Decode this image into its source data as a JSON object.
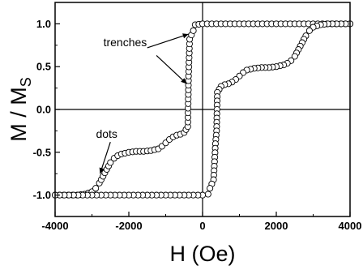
{
  "chart_data": {
    "type": "scatter",
    "title": "",
    "xlabel": "H (Oe)",
    "ylabel": "M / M",
    "ylabel_sub": "S",
    "xlim": [
      -4000,
      4000
    ],
    "ylim": [
      -1.25,
      1.25
    ],
    "xticks": [
      -4000,
      -2000,
      0,
      2000,
      4000
    ],
    "yticks": [
      -1.0,
      -0.5,
      0.0,
      0.5,
      1.0
    ],
    "xtick_labels": [
      "-4000",
      "-2000",
      "0",
      "2000",
      "4000"
    ],
    "ytick_labels": [
      "-1.0",
      "-0.5",
      "0.0",
      "0.5",
      "1.0"
    ],
    "grid": false,
    "reference_lines": {
      "x": 0,
      "y": 0
    },
    "annotations": [
      {
        "text": "trenches",
        "x": -2100,
        "y": 0.74
      },
      {
        "text": "dots",
        "x": -2600,
        "y": -0.33
      }
    ],
    "series": [
      {
        "marker": "open-circle",
        "line": true,
        "points": [
          [
            -4000,
            -1.0
          ],
          [
            -3400,
            -1.0
          ],
          [
            -3200,
            -0.99
          ],
          [
            -3000,
            -0.96
          ],
          [
            -2900,
            -0.92
          ],
          [
            -2800,
            -0.86
          ],
          [
            -2700,
            -0.78
          ],
          [
            -2600,
            -0.7
          ],
          [
            -2500,
            -0.62
          ],
          [
            -2400,
            -0.57
          ],
          [
            -2300,
            -0.54
          ],
          [
            -2200,
            -0.52
          ],
          [
            -2000,
            -0.5
          ],
          [
            -1800,
            -0.49
          ],
          [
            -1600,
            -0.49
          ],
          [
            -1400,
            -0.48
          ],
          [
            -1200,
            -0.46
          ],
          [
            -1100,
            -0.43
          ],
          [
            -1000,
            -0.39
          ],
          [
            -900,
            -0.35
          ],
          [
            -800,
            -0.32
          ],
          [
            -700,
            -0.3
          ],
          [
            -600,
            -0.29
          ],
          [
            -500,
            -0.27
          ],
          [
            -400,
            -0.2
          ],
          [
            -380,
            0.39
          ],
          [
            -350,
            0.82
          ],
          [
            -300,
            0.87
          ],
          [
            -250,
            0.92
          ],
          [
            -200,
            0.99
          ],
          [
            0,
            1.0
          ],
          [
            1000,
            1.0
          ],
          [
            2000,
            1.0
          ],
          [
            3000,
            1.0
          ],
          [
            4000,
            1.0
          ]
        ]
      },
      {
        "marker": "open-circle",
        "line": true,
        "points": [
          [
            4000,
            1.0
          ],
          [
            3400,
            1.0
          ],
          [
            3200,
            0.99
          ],
          [
            3000,
            0.96
          ],
          [
            2900,
            0.92
          ],
          [
            2800,
            0.86
          ],
          [
            2700,
            0.78
          ],
          [
            2600,
            0.7
          ],
          [
            2500,
            0.62
          ],
          [
            2400,
            0.57
          ],
          [
            2300,
            0.54
          ],
          [
            2200,
            0.52
          ],
          [
            2000,
            0.5
          ],
          [
            1800,
            0.49
          ],
          [
            1600,
            0.49
          ],
          [
            1400,
            0.48
          ],
          [
            1200,
            0.46
          ],
          [
            1100,
            0.43
          ],
          [
            1000,
            0.39
          ],
          [
            900,
            0.35
          ],
          [
            800,
            0.32
          ],
          [
            700,
            0.3
          ],
          [
            600,
            0.29
          ],
          [
            500,
            0.27
          ],
          [
            400,
            0.2
          ],
          [
            380,
            -0.25
          ],
          [
            350,
            -0.4
          ],
          [
            300,
            -0.82
          ],
          [
            250,
            -0.87
          ],
          [
            200,
            -0.92
          ],
          [
            150,
            -0.99
          ],
          [
            0,
            -1.0
          ],
          [
            -1000,
            -1.0
          ],
          [
            -2000,
            -1.0
          ],
          [
            -3000,
            -1.0
          ],
          [
            -4000,
            -1.0
          ]
        ]
      }
    ]
  }
}
